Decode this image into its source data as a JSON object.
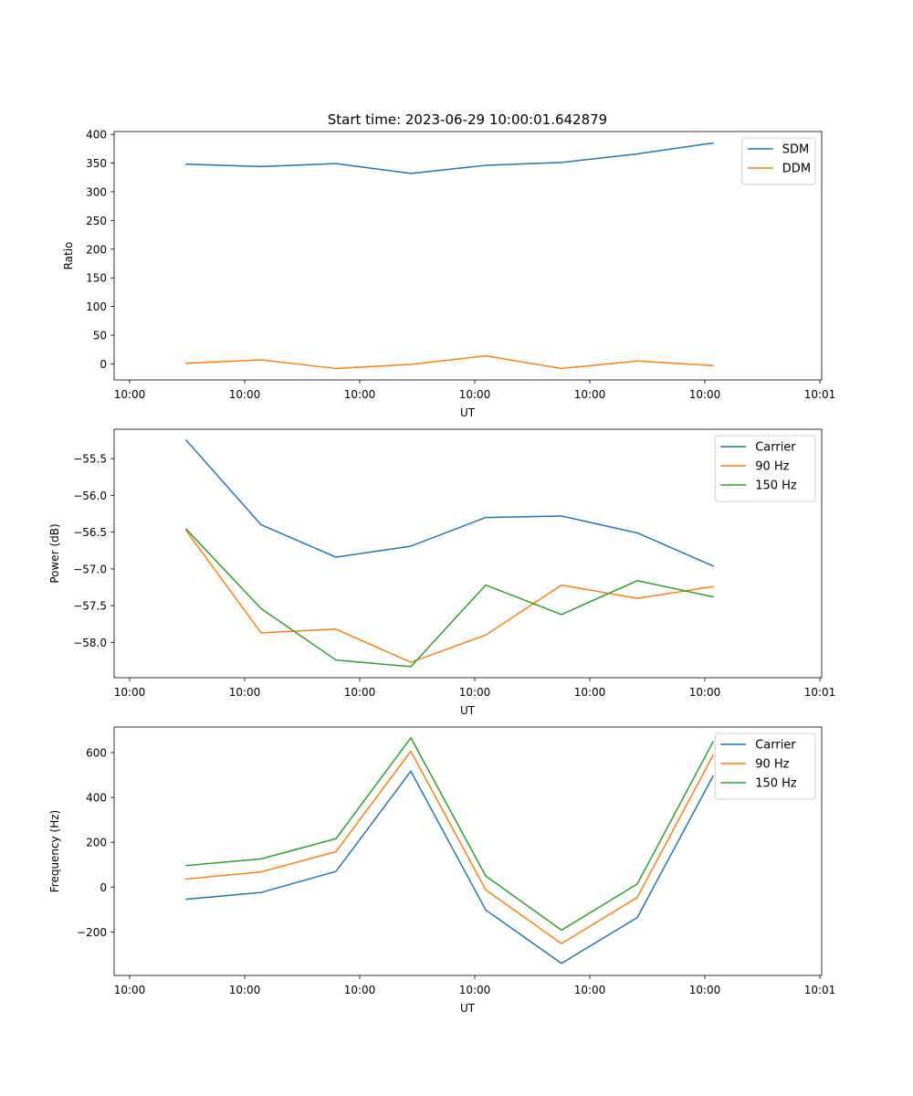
{
  "figure_title": "Start time: 2023-06-29 10:00:01.642879",
  "colors": {
    "blue": "#1f77b4",
    "orange": "#ff7f0e",
    "green": "#2ca02c"
  },
  "chart_data": [
    {
      "type": "line",
      "xlabel": "UT",
      "ylabel": "Ratio",
      "x_tick_labels": [
        "10:00",
        "10:00",
        "10:00",
        "10:00",
        "10:00",
        "10:00",
        "10:01"
      ],
      "y_ticks": [
        0,
        50,
        100,
        150,
        200,
        250,
        300,
        350,
        400
      ],
      "y_tick_labels": [
        "0",
        "50",
        "100",
        "150",
        "200",
        "250",
        "300",
        "350",
        "400"
      ],
      "ylim": [
        -28,
        405
      ],
      "legend_position": "upper right",
      "series": [
        {
          "name": "SDM",
          "color": "#1f77b4",
          "values": [
            348,
            344,
            349,
            332,
            346,
            351,
            366,
            385
          ]
        },
        {
          "name": "DDM",
          "color": "#ff7f0e",
          "values": [
            1,
            7,
            -8,
            -1,
            14,
            -8,
            5,
            -3
          ]
        }
      ]
    },
    {
      "type": "line",
      "xlabel": "UT",
      "ylabel": "Power (dB)",
      "x_tick_labels": [
        "10:00",
        "10:00",
        "10:00",
        "10:00",
        "10:00",
        "10:00",
        "10:01"
      ],
      "y_ticks": [
        -58.0,
        -57.5,
        -57.0,
        -56.5,
        -56.0,
        -55.5
      ],
      "y_tick_labels": [
        "−58.0",
        "−57.5",
        "−57.0",
        "−56.5",
        "−56.0",
        "−55.5"
      ],
      "ylim": [
        -58.48,
        -55.1
      ],
      "legend_position": "upper right",
      "series": [
        {
          "name": "Carrier",
          "color": "#1f77b4",
          "values": [
            -55.25,
            -56.4,
            -56.84,
            -56.69,
            -56.3,
            -56.28,
            -56.51,
            -56.96
          ]
        },
        {
          "name": "90 Hz",
          "color": "#ff7f0e",
          "values": [
            -56.48,
            -57.87,
            -57.82,
            -58.27,
            -57.9,
            -57.22,
            -57.4,
            -57.24
          ]
        },
        {
          "name": "150 Hz",
          "color": "#2ca02c",
          "values": [
            -56.46,
            -57.54,
            -58.24,
            -58.33,
            -57.22,
            -57.62,
            -57.16,
            -57.38
          ]
        }
      ]
    },
    {
      "type": "line",
      "xlabel": "UT",
      "ylabel": "Frequency (Hz)",
      "x_tick_labels": [
        "10:00",
        "10:00",
        "10:00",
        "10:00",
        "10:00",
        "10:00",
        "10:01"
      ],
      "y_ticks": [
        -200,
        0,
        200,
        400,
        600
      ],
      "y_tick_labels": [
        "−200",
        "0",
        "200",
        "400",
        "600"
      ],
      "ylim": [
        -394,
        714
      ],
      "legend_position": "upper right",
      "series": [
        {
          "name": "Carrier",
          "color": "#1f77b4",
          "values": [
            -54,
            -24,
            70,
            517,
            -102,
            -340,
            -136,
            495
          ]
        },
        {
          "name": "90 Hz",
          "color": "#ff7f0e",
          "values": [
            36,
            68,
            158,
            606,
            -12,
            -252,
            -46,
            588
          ]
        },
        {
          "name": "150 Hz",
          "color": "#2ca02c",
          "values": [
            96,
            126,
            216,
            666,
            50,
            -192,
            14,
            648
          ]
        }
      ]
    }
  ]
}
